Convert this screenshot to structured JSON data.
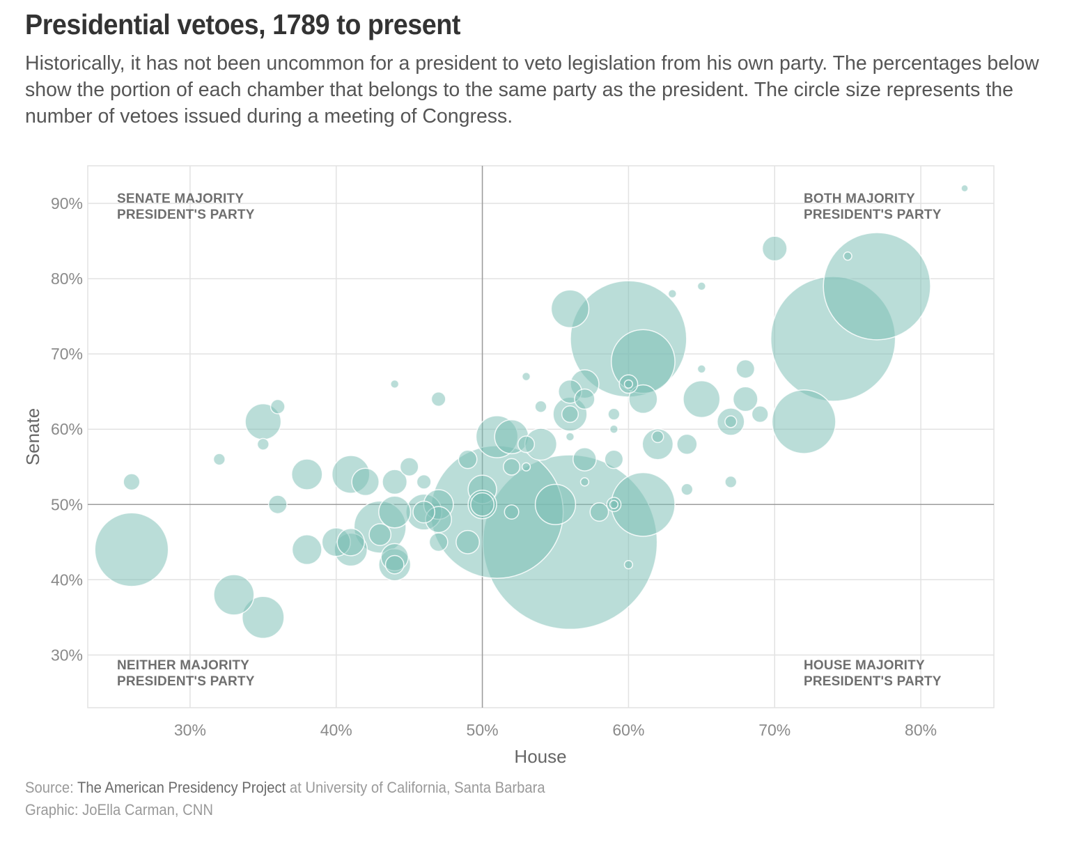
{
  "header": {
    "title": "Presidential vetoes, 1789 to present",
    "subtitle": "Historically, it has not been uncommon for a president to veto legislation from his own party. The percentages below show the portion of each chamber that belongs to the same party as the president. The circle size represents the number of vetoes issued during a meeting of Congress."
  },
  "footer": {
    "source_prefix": "Source: ",
    "source_name": "The American Presidency Project",
    "source_at": " at ",
    "source_institution": "University of California, Santa Barbara",
    "credit": "Graphic: JoElla Carman, CNN"
  },
  "colors": {
    "bubble": "#7abdb4",
    "grid": "#e2e2e2",
    "midline": "#9b9b9b"
  },
  "chart_data": {
    "type": "scatter",
    "subtype": "bubble",
    "xlabel": "House",
    "ylabel": "Senate",
    "xlim": [
      23,
      85
    ],
    "ylim": [
      23,
      95
    ],
    "xticks": [
      30,
      40,
      50,
      60,
      70,
      80
    ],
    "yticks": [
      30,
      40,
      50,
      60,
      70,
      80,
      90
    ],
    "xtick_labels": [
      "30%",
      "40%",
      "50%",
      "60%",
      "70%",
      "80%"
    ],
    "ytick_labels": [
      "30%",
      "40%",
      "50%",
      "60%",
      "70%",
      "80%",
      "90%"
    ],
    "grid": true,
    "reference_lines": {
      "x": 50,
      "y": 50
    },
    "quadrant_labels": {
      "top_left": [
        "SENATE MAJORITY",
        "PRESIDENT'S PARTY"
      ],
      "top_right": [
        "BOTH MAJORITY",
        "PRESIDENT'S PARTY"
      ],
      "bottom_left": [
        "NEITHER MAJORITY",
        "PRESIDENT'S PARTY"
      ],
      "bottom_right": [
        "HOUSE MAJORITY",
        "PRESIDENT'S PARTY"
      ]
    },
    "size_meaning": "number of vetoes issued during a meeting of Congress",
    "points": [
      {
        "x": 26,
        "y": 44,
        "vetoes": 80
      },
      {
        "x": 26,
        "y": 53,
        "vetoes": 4
      },
      {
        "x": 32,
        "y": 56,
        "vetoes": 2
      },
      {
        "x": 33,
        "y": 38,
        "vetoes": 24
      },
      {
        "x": 35,
        "y": 35,
        "vetoes": 26
      },
      {
        "x": 35,
        "y": 61,
        "vetoes": 19
      },
      {
        "x": 35,
        "y": 58,
        "vetoes": 2
      },
      {
        "x": 36,
        "y": 63,
        "vetoes": 3
      },
      {
        "x": 36,
        "y": 50,
        "vetoes": 5
      },
      {
        "x": 38,
        "y": 54,
        "vetoes": 14
      },
      {
        "x": 38,
        "y": 44,
        "vetoes": 13
      },
      {
        "x": 40,
        "y": 45,
        "vetoes": 12
      },
      {
        "x": 41,
        "y": 54,
        "vetoes": 21
      },
      {
        "x": 41,
        "y": 45,
        "vetoes": 11
      },
      {
        "x": 41,
        "y": 44,
        "vetoes": 16
      },
      {
        "x": 42,
        "y": 53,
        "vetoes": 11
      },
      {
        "x": 43,
        "y": 47,
        "vetoes": 40
      },
      {
        "x": 43,
        "y": 46,
        "vetoes": 7
      },
      {
        "x": 44,
        "y": 53,
        "vetoes": 9
      },
      {
        "x": 44,
        "y": 49,
        "vetoes": 15
      },
      {
        "x": 44,
        "y": 43,
        "vetoes": 11
      },
      {
        "x": 44,
        "y": 42,
        "vetoes": 15
      },
      {
        "x": 44,
        "y": 42,
        "vetoes": 5
      },
      {
        "x": 44,
        "y": 66,
        "vetoes": 1
      },
      {
        "x": 45,
        "y": 55,
        "vetoes": 5
      },
      {
        "x": 46,
        "y": 53,
        "vetoes": 3
      },
      {
        "x": 46,
        "y": 49,
        "vetoes": 19
      },
      {
        "x": 46,
        "y": 49,
        "vetoes": 7
      },
      {
        "x": 47,
        "y": 50,
        "vetoes": 13
      },
      {
        "x": 47,
        "y": 48,
        "vetoes": 10
      },
      {
        "x": 47,
        "y": 45,
        "vetoes": 5
      },
      {
        "x": 47,
        "y": 64,
        "vetoes": 3
      },
      {
        "x": 49,
        "y": 56,
        "vetoes": 5
      },
      {
        "x": 49,
        "y": 45,
        "vetoes": 8
      },
      {
        "x": 50,
        "y": 52,
        "vetoes": 12
      },
      {
        "x": 50,
        "y": 50,
        "vetoes": 12
      },
      {
        "x": 50,
        "y": 50,
        "vetoes": 8
      },
      {
        "x": 51,
        "y": 49,
        "vetoes": 260
      },
      {
        "x": 51,
        "y": 59,
        "vetoes": 26
      },
      {
        "x": 52,
        "y": 59,
        "vetoes": 17
      },
      {
        "x": 52,
        "y": 55,
        "vetoes": 4
      },
      {
        "x": 52,
        "y": 49,
        "vetoes": 3
      },
      {
        "x": 53,
        "y": 67,
        "vetoes": 1
      },
      {
        "x": 53,
        "y": 55,
        "vetoes": 1
      },
      {
        "x": 54,
        "y": 58,
        "vetoes": 15
      },
      {
        "x": 53,
        "y": 58,
        "vetoes": 4
      },
      {
        "x": 54,
        "y": 63,
        "vetoes": 2
      },
      {
        "x": 55,
        "y": 50,
        "vetoes": 24
      },
      {
        "x": 56,
        "y": 45,
        "vetoes": 450
      },
      {
        "x": 56,
        "y": 76,
        "vetoes": 21
      },
      {
        "x": 56,
        "y": 65,
        "vetoes": 8
      },
      {
        "x": 56,
        "y": 62,
        "vetoes": 17
      },
      {
        "x": 56,
        "y": 62,
        "vetoes": 4
      },
      {
        "x": 56,
        "y": 59,
        "vetoes": 1
      },
      {
        "x": 57,
        "y": 66,
        "vetoes": 12
      },
      {
        "x": 57,
        "y": 64,
        "vetoes": 6
      },
      {
        "x": 57,
        "y": 56,
        "vetoes": 8
      },
      {
        "x": 57,
        "y": 53,
        "vetoes": 1
      },
      {
        "x": 58,
        "y": 49,
        "vetoes": 5
      },
      {
        "x": 59,
        "y": 62,
        "vetoes": 2
      },
      {
        "x": 59,
        "y": 60,
        "vetoes": 1
      },
      {
        "x": 59,
        "y": 56,
        "vetoes": 5
      },
      {
        "x": 59,
        "y": 50,
        "vetoes": 3
      },
      {
        "x": 59,
        "y": 50,
        "vetoes": 1
      },
      {
        "x": 60,
        "y": 72,
        "vetoes": 200
      },
      {
        "x": 60,
        "y": 66,
        "vetoes": 5
      },
      {
        "x": 60,
        "y": 66,
        "vetoes": 1
      },
      {
        "x": 60,
        "y": 42,
        "vetoes": 1
      },
      {
        "x": 61,
        "y": 69,
        "vetoes": 60
      },
      {
        "x": 61,
        "y": 64,
        "vetoes": 12
      },
      {
        "x": 61,
        "y": 50,
        "vetoes": 60
      },
      {
        "x": 62,
        "y": 58,
        "vetoes": 14
      },
      {
        "x": 62,
        "y": 59,
        "vetoes": 2
      },
      {
        "x": 63,
        "y": 78,
        "vetoes": 1
      },
      {
        "x": 64,
        "y": 58,
        "vetoes": 6
      },
      {
        "x": 64,
        "y": 52,
        "vetoes": 2
      },
      {
        "x": 65,
        "y": 79,
        "vetoes": 1
      },
      {
        "x": 65,
        "y": 68,
        "vetoes": 1
      },
      {
        "x": 65,
        "y": 64,
        "vetoes": 20
      },
      {
        "x": 67,
        "y": 61,
        "vetoes": 11
      },
      {
        "x": 67,
        "y": 61,
        "vetoes": 2
      },
      {
        "x": 67,
        "y": 53,
        "vetoes": 2
      },
      {
        "x": 68,
        "y": 68,
        "vetoes": 5
      },
      {
        "x": 68,
        "y": 64,
        "vetoes": 9
      },
      {
        "x": 69,
        "y": 62,
        "vetoes": 4
      },
      {
        "x": 70,
        "y": 84,
        "vetoes": 9
      },
      {
        "x": 72,
        "y": 61,
        "vetoes": 60
      },
      {
        "x": 74,
        "y": 72,
        "vetoes": 230
      },
      {
        "x": 75,
        "y": 83,
        "vetoes": 1
      },
      {
        "x": 77,
        "y": 79,
        "vetoes": 170
      },
      {
        "x": 83,
        "y": 92,
        "vetoes": 0.5
      }
    ]
  }
}
